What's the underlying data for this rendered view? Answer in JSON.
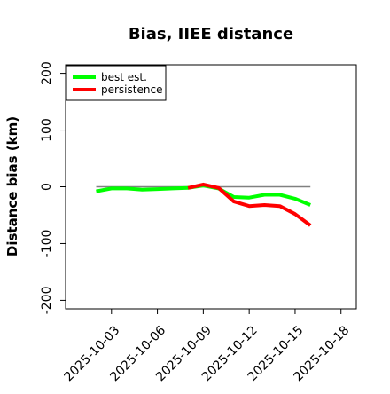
{
  "chart_data": {
    "type": "line",
    "title": "Bias, IIEE distance",
    "xlabel": "",
    "ylabel": "Distance bias (km)",
    "xlim": [
      "2025-09-30",
      "2025-10-19"
    ],
    "ylim": [
      -215,
      215
    ],
    "yticks": [
      -200,
      -100,
      0,
      100,
      200
    ],
    "xticks": [
      "2025-10-03",
      "2025-10-06",
      "2025-10-09",
      "2025-10-12",
      "2025-10-15",
      "2025-10-18"
    ],
    "grid": false,
    "legend_position": "top-left",
    "reference_line": {
      "y": 0,
      "color": "#808080"
    },
    "series": [
      {
        "name": "best est.",
        "color": "#00ff00",
        "x": [
          "2025-10-02",
          "2025-10-03",
          "2025-10-04",
          "2025-10-05",
          "2025-10-06",
          "2025-10-07",
          "2025-10-08",
          "2025-10-09",
          "2025-10-10",
          "2025-10-11",
          "2025-10-12",
          "2025-10-13",
          "2025-10-14",
          "2025-10-15",
          "2025-10-16"
        ],
        "values": [
          -8,
          -3,
          -3,
          -5,
          -4,
          -3,
          -2,
          2,
          -3,
          -18,
          -19,
          -14,
          -14,
          -21,
          -32
        ]
      },
      {
        "name": "persistence",
        "color": "#ff0000",
        "x": [
          "2025-10-08",
          "2025-10-09",
          "2025-10-10",
          "2025-10-11",
          "2025-10-12",
          "2025-10-13",
          "2025-10-14",
          "2025-10-15",
          "2025-10-16"
        ],
        "values": [
          -2,
          4,
          -2,
          -26,
          -34,
          -32,
          -34,
          -48,
          -68
        ]
      }
    ]
  }
}
